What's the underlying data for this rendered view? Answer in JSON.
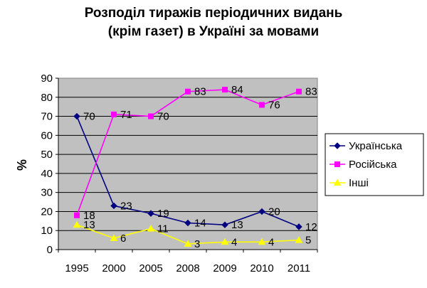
{
  "chart_data": {
    "type": "line",
    "title_lines": [
      "Розподіл тиражів періодичних видань",
      "(крім газет) в Україні за мовами"
    ],
    "ylabel": "%",
    "xlabel": "",
    "categories": [
      "1995",
      "2000",
      "2005",
      "2008",
      "2009",
      "2010",
      "2011"
    ],
    "ylim": [
      0,
      90
    ],
    "yticks": [
      0,
      10,
      20,
      30,
      40,
      50,
      60,
      70,
      80,
      90
    ],
    "grid": true,
    "legend_position": "right",
    "series": [
      {
        "name": "Українська",
        "values": [
          70,
          23,
          19,
          14,
          13,
          20,
          12
        ],
        "labels": [
          "70",
          "23",
          "19",
          "14",
          "13",
          "20",
          "12"
        ],
        "color": "#000080",
        "marker": "diamond"
      },
      {
        "name": "Російська",
        "values": [
          18,
          71,
          70,
          83,
          84,
          76,
          83
        ],
        "labels": [
          "18",
          "71",
          "70",
          "83",
          "84",
          "76",
          "83"
        ],
        "color": "#ff00ff",
        "marker": "square"
      },
      {
        "name": "Інші",
        "values": [
          13,
          6,
          11,
          3,
          4,
          4,
          5
        ],
        "labels": [
          "13",
          "6",
          "11",
          "3",
          "4",
          "4",
          "5"
        ],
        "color": "#ffff00",
        "marker": "triangle"
      }
    ],
    "plot_background": "#c0c0c0"
  }
}
